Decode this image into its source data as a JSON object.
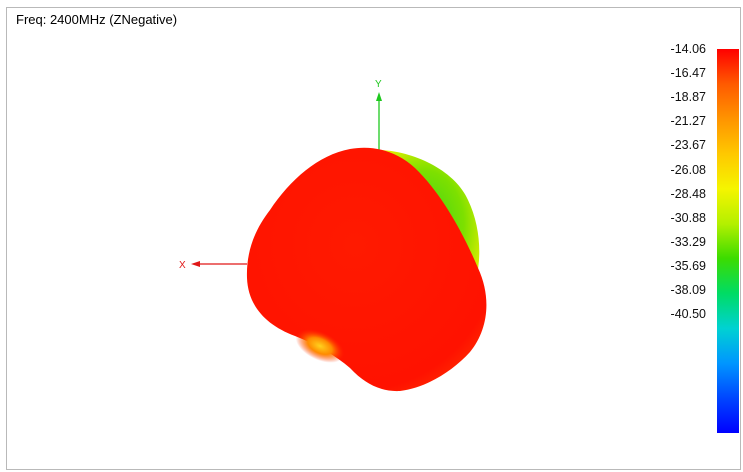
{
  "title": "Freq: 2400MHz (ZNegative)",
  "axes": {
    "y_label": "Y",
    "x_label": "X",
    "y_color": "#1ec81e",
    "x_color": "#e01818"
  },
  "legend": {
    "ticks": [
      "-14.06",
      "-16.47",
      "-18.87",
      "-21.27",
      "-23.67",
      "-26.08",
      "-28.48",
      "-30.88",
      "-33.29",
      "-35.69",
      "-38.09",
      "-40.50"
    ],
    "colors": [
      "#ff0000",
      "#ff5a00",
      "#ff9400",
      "#ffc800",
      "#f5f500",
      "#b4f000",
      "#3cdc00",
      "#00dc64",
      "#00d2d2",
      "#0096ff",
      "#0046ff",
      "#0000ff"
    ]
  }
}
